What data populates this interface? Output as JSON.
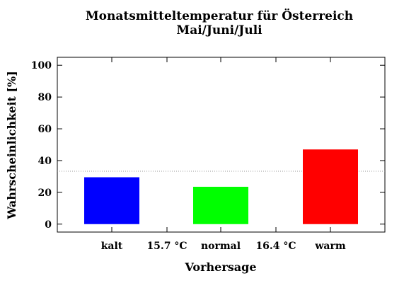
{
  "chart_data": {
    "type": "bar",
    "title": "Monatsmitteltemperatur für Österreich",
    "subtitle": "Mai/Juni/Juli",
    "xlabel": "Vorhersage",
    "ylabel": "Wahrscheinlichkeit [%]",
    "ylim": [
      -5,
      105
    ],
    "yticks": [
      0,
      20,
      40,
      60,
      80,
      100
    ],
    "x_tick_labels": [
      "kalt",
      "15.7 °C",
      "normal",
      "16.4 °C",
      "warm"
    ],
    "categories": [
      "kalt",
      "normal",
      "warm"
    ],
    "values": [
      29.5,
      23.5,
      47
    ],
    "colors": [
      "#0000ff",
      "#00ff00",
      "#ff0000"
    ],
    "reference_line": 33.3,
    "grid": false,
    "legend": "none"
  }
}
